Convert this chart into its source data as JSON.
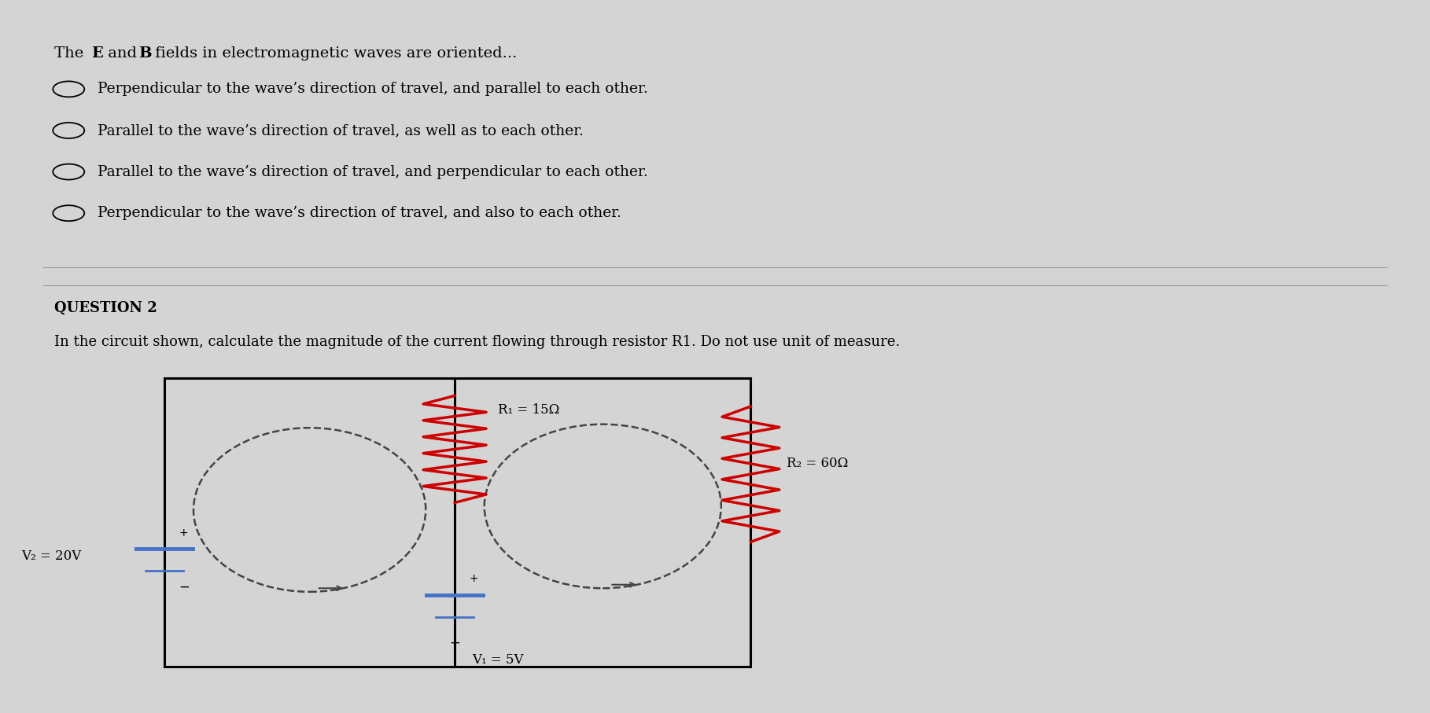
{
  "bg_color": "#d4d4d4",
  "text_color": "#000000",
  "options": [
    "Perpendicular to the wave’s direction of travel, and parallel to each other.",
    "Parallel to the wave’s direction of travel, as well as to each other.",
    "Parallel to the wave’s direction of travel, and perpendicular to each other.",
    "Perpendicular to the wave’s direction of travel, and also to each other."
  ],
  "section_label": "QUESTION 2",
  "question2": "In the circuit shown, calculate the magnitude of the current flowing through resistor R1. Do not use unit of measure.",
  "circuit": {
    "wire_color": "#000000",
    "resistor_color": "#cc0000",
    "battery_color": "#4472c4",
    "dashed_color": "#444444",
    "R1_label": "R₁ = 15Ω",
    "R2_label": "R₂ = 60Ω",
    "V1_label": "V₁ = 5V",
    "V2_label": "V₂ = 20V"
  },
  "font_size_main": 14,
  "font_size_question": 13,
  "font_size_circuit": 12
}
